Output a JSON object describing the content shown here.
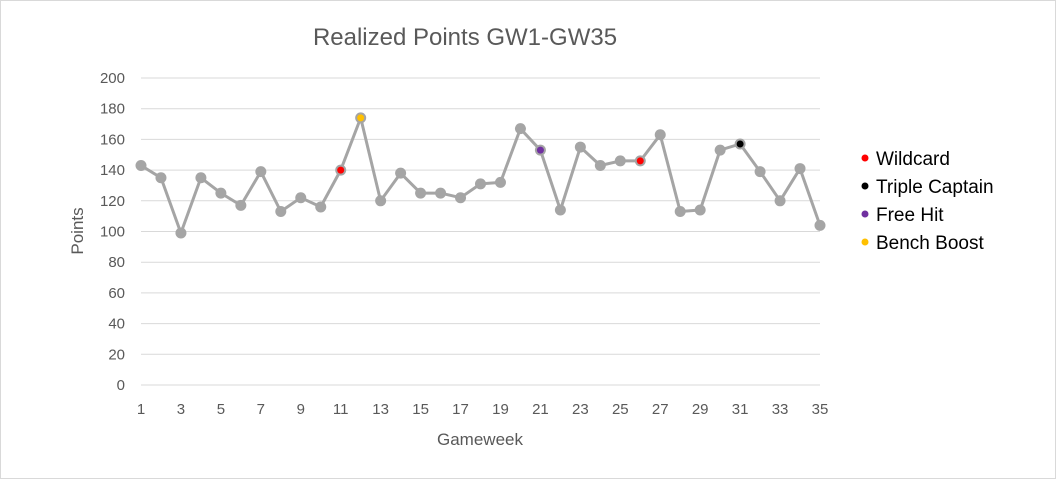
{
  "chart_data": {
    "type": "line",
    "title": "Realized Points GW1-GW35",
    "xlabel": "Gameweek",
    "ylabel": "Points",
    "ylim": [
      0,
      200
    ],
    "ystep": 20,
    "xlim": [
      1,
      35
    ],
    "xticks": [
      1,
      3,
      5,
      7,
      9,
      11,
      13,
      15,
      17,
      19,
      21,
      23,
      25,
      27,
      29,
      31,
      33,
      35
    ],
    "grid": true,
    "legend_position": "right",
    "line_color": "#a5a5a5",
    "x": [
      1,
      2,
      3,
      4,
      5,
      6,
      7,
      8,
      9,
      10,
      11,
      12,
      13,
      14,
      15,
      16,
      17,
      18,
      19,
      20,
      21,
      22,
      23,
      24,
      25,
      26,
      27,
      28,
      29,
      30,
      31,
      32,
      33,
      34,
      35
    ],
    "values": [
      143,
      135,
      99,
      135,
      125,
      117,
      139,
      113,
      122,
      116,
      140,
      174,
      120,
      138,
      125,
      125,
      122,
      131,
      132,
      167,
      153,
      114,
      155,
      143,
      146,
      146,
      163,
      113,
      114,
      153,
      157,
      139,
      120,
      141,
      104
    ],
    "chips": [
      {
        "name": "Wildcard",
        "color": "#ff0000",
        "gameweeks": [
          11,
          26
        ]
      },
      {
        "name": "Triple Captain",
        "color": "#000000",
        "gameweeks": [
          31
        ]
      },
      {
        "name": "Free Hit",
        "color": "#7030a0",
        "gameweeks": [
          21
        ]
      },
      {
        "name": "Bench Boost",
        "color": "#ffc000",
        "gameweeks": [
          12
        ]
      }
    ]
  }
}
